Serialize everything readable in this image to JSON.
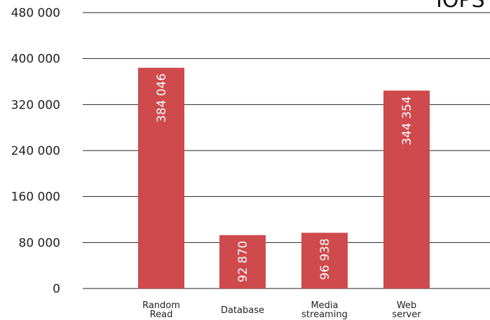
{
  "chart_data": {
    "type": "bar",
    "title": "IOPS",
    "categories": [
      [
        "Random",
        "Read"
      ],
      [
        "Database"
      ],
      [
        "Media",
        "streaming"
      ],
      [
        "Web",
        "server"
      ]
    ],
    "values": [
      384046,
      92870,
      96938,
      344354
    ],
    "value_labels": [
      "384 046",
      "92 870",
      "96 938",
      "344 354"
    ],
    "ylim": [
      0,
      480000
    ],
    "yticks": [
      0,
      80000,
      160000,
      240000,
      320000,
      400000,
      480000
    ],
    "ytick_labels": [
      "0",
      "80 000",
      "160 000",
      "240 000",
      "320 000",
      "400 000",
      "480 000"
    ],
    "grid": true,
    "bar_color": "#cf4a4c",
    "xlabel": "",
    "ylabel": ""
  }
}
